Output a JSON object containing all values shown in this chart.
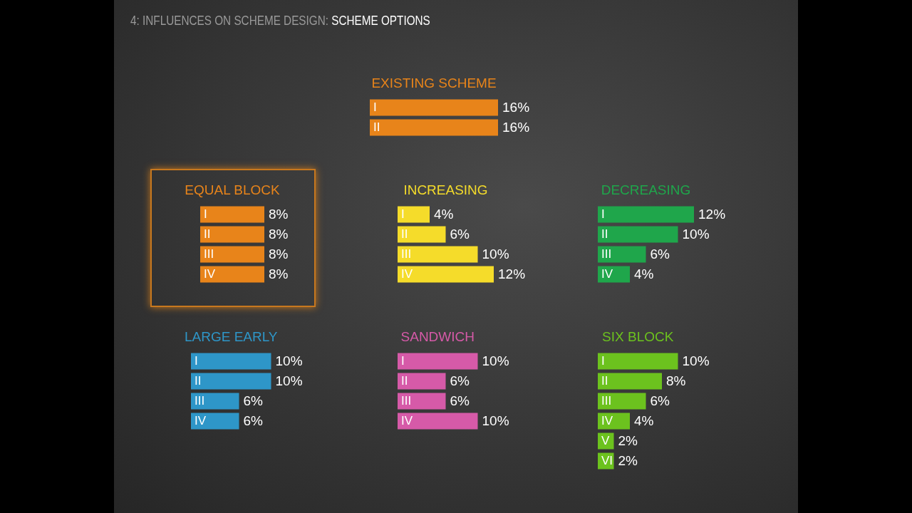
{
  "chart_data": [
    {
      "type": "bar",
      "orientation": "horizontal",
      "title": "EXISTING SCHEME",
      "categories": [
        "I",
        "II"
      ],
      "values": [
        16,
        16
      ],
      "value_labels": [
        "16%",
        "16%"
      ],
      "color": "#e8841a",
      "annotations": [
        "4: INFLUENCES ON SCHEME DESIGN: SCHEME OPTIONS"
      ]
    },
    {
      "type": "bar",
      "orientation": "horizontal",
      "title": "EQUAL BLOCK",
      "categories": [
        "I",
        "II",
        "III",
        "IV"
      ],
      "values": [
        8,
        8,
        8,
        8
      ],
      "value_labels": [
        "8%",
        "8%",
        "8%",
        "8%"
      ],
      "color": "#e8841a"
    },
    {
      "type": "bar",
      "orientation": "horizontal",
      "title": "INCREASING",
      "categories": [
        "I",
        "II",
        "III",
        "IV"
      ],
      "values": [
        4,
        6,
        10,
        12
      ],
      "value_labels": [
        "4%",
        "6%",
        "10%",
        "12%"
      ],
      "color": "#f5dc2a"
    },
    {
      "type": "bar",
      "orientation": "horizontal",
      "title": "DECREASING",
      "categories": [
        "I",
        "II",
        "III",
        "IV"
      ],
      "values": [
        12,
        10,
        6,
        4
      ],
      "value_labels": [
        "12%",
        "10%",
        "6%",
        "4%"
      ],
      "color": "#1fa64b"
    },
    {
      "type": "bar",
      "orientation": "horizontal",
      "title": "LARGE EARLY",
      "categories": [
        "I",
        "II",
        "III",
        "IV"
      ],
      "values": [
        10,
        10,
        6,
        6
      ],
      "value_labels": [
        "10%",
        "10%",
        "6%",
        "6%"
      ],
      "color": "#2e96c8"
    },
    {
      "type": "bar",
      "orientation": "horizontal",
      "title": "SANDWICH",
      "categories": [
        "I",
        "II",
        "III",
        "IV"
      ],
      "values": [
        10,
        6,
        6,
        10
      ],
      "value_labels": [
        "10%",
        "6%",
        "6%",
        "10%"
      ],
      "color": "#d65aa8"
    },
    {
      "type": "bar",
      "orientation": "horizontal",
      "title": "SIX BLOCK",
      "categories": [
        "I",
        "II",
        "III",
        "IV",
        "V",
        "VI"
      ],
      "values": [
        10,
        8,
        6,
        4,
        2,
        2
      ],
      "value_labels": [
        "10%",
        "8%",
        "6%",
        "4%",
        "2%",
        "2%"
      ],
      "color": "#6cc21e"
    }
  ]
}
